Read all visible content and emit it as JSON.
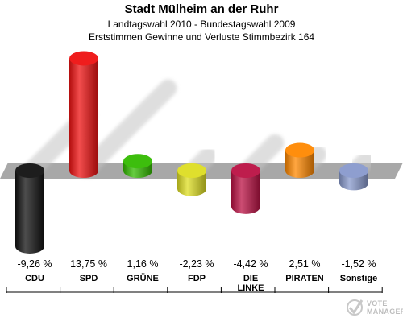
{
  "header": {
    "title": "Stadt Mülheim an der Ruhr",
    "subtitle1": "Landtagswahl 2010 - Bundestagswahl 2009",
    "subtitle2": "Erststimmen Gewinne und Verluste Stimmbezirk 164"
  },
  "chart_data": {
    "type": "bar",
    "categories": [
      "CDU",
      "SPD",
      "GRÜNE",
      "FDP",
      "DIE LINKE",
      "PIRATEN",
      "Sonstige"
    ],
    "category_lines": [
      [
        "CDU"
      ],
      [
        "SPD"
      ],
      [
        "GRÜNE"
      ],
      [
        "FDP"
      ],
      [
        "DIE",
        "LINKE"
      ],
      [
        "PIRATEN"
      ],
      [
        "Sonstige"
      ]
    ],
    "values": [
      -9.26,
      13.75,
      1.16,
      -2.23,
      -4.42,
      2.51,
      -1.52
    ],
    "value_labels": [
      "-9,26 %",
      "13,75 %",
      "1,16 %",
      "-2,23 %",
      "-4,42 %",
      "2,51 %",
      "-1,52 %"
    ],
    "colors": [
      "#111111",
      "#ee1111",
      "#33bb00",
      "#dddd22",
      "#bb1144",
      "#ff8800",
      "#8899cc"
    ],
    "grid": false,
    "legend": "none"
  },
  "logo": {
    "line1": "VOTE",
    "line2": "MANAGER"
  }
}
